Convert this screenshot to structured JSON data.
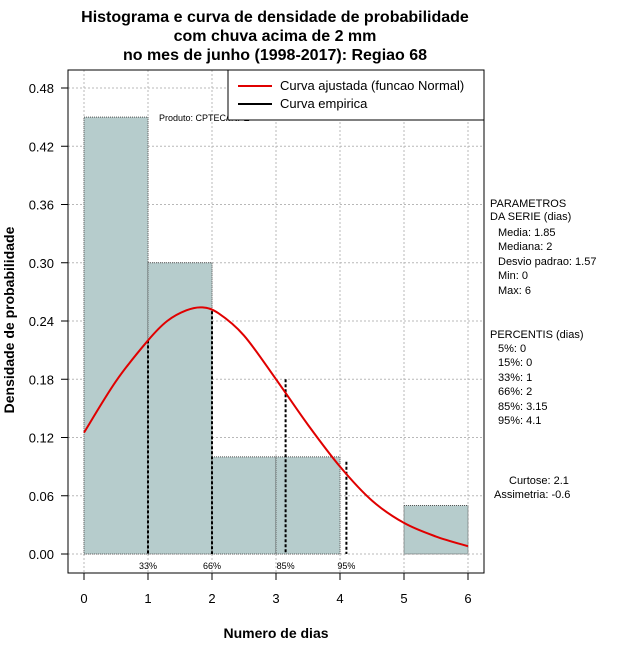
{
  "chart_data": {
    "type": "bar",
    "title_lines": [
      "Histograma e curva de densidade de probabilidade",
      "com chuva acima de 2 mm",
      "no mes de junho (1998-2017): Regiao 68"
    ],
    "xlabel": "Numero de dias",
    "ylabel": "Densidade de probabilidade",
    "xlim": [
      0,
      6
    ],
    "ylim": [
      0,
      0.48
    ],
    "x_ticks": [
      "0",
      "1",
      "2",
      "3",
      "4",
      "5",
      "6"
    ],
    "y_ticks": [
      "0.00",
      "0.06",
      "0.12",
      "0.18",
      "0.24",
      "0.30",
      "0.36",
      "0.42",
      "0.48"
    ],
    "bins": [
      {
        "start": 0,
        "end": 1,
        "density": 0.45
      },
      {
        "start": 1,
        "end": 2,
        "density": 0.3
      },
      {
        "start": 2,
        "end": 3,
        "density": 0.1
      },
      {
        "start": 3,
        "end": 4,
        "density": 0.1
      },
      {
        "start": 4,
        "end": 5,
        "density": 0.0
      },
      {
        "start": 5,
        "end": 6,
        "density": 0.05
      }
    ],
    "fitted_curve": {
      "name": "Curva ajustada (funcao Normal)",
      "color": "#e00000",
      "x": [
        0,
        0.5,
        1,
        1.3,
        1.6,
        1.85,
        2.1,
        2.5,
        3,
        3.5,
        4,
        4.5,
        5,
        5.5,
        6
      ],
      "y": [
        0.125,
        0.178,
        0.22,
        0.24,
        0.251,
        0.254,
        0.248,
        0.225,
        0.18,
        0.133,
        0.09,
        0.055,
        0.032,
        0.018,
        0.008
      ]
    },
    "empirical_curve": {
      "name": "Curva empirica",
      "color": "#000000"
    },
    "percentile_lines": [
      {
        "label": "33%",
        "x": 1,
        "height": 0.22
      },
      {
        "label": "66%",
        "x": 2,
        "height": 0.25
      },
      {
        "label": "85%",
        "x": 3.15,
        "height": 0.18
      },
      {
        "label": "95%",
        "x": 4.1,
        "height": 0.095
      }
    ],
    "legend_position": "top-right",
    "bar_color": "#b6cccc",
    "product_label": "Produto: CPTEC/INPE"
  },
  "stats_panel": {
    "parametros_title": [
      "PARAMETROS",
      "DA SERIE (dias)"
    ],
    "parametros": [
      "Media: 1.85",
      "Mediana: 2",
      "Desvio padrao: 1.57",
      "Min: 0",
      "Max: 6"
    ],
    "percentis_title": "PERCENTIS (dias)",
    "percentis": [
      "5%: 0",
      "15%: 0",
      "33%: 1",
      "66%: 2",
      "85%: 3.15",
      "95%: 4.1"
    ],
    "shape": [
      "Curtose: 2.1",
      "Assimetria: -0.6"
    ]
  }
}
